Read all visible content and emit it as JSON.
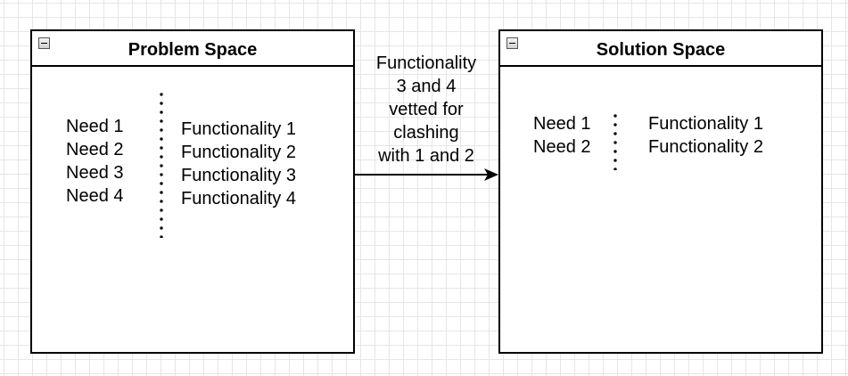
{
  "problem_space": {
    "title": "Problem Space",
    "needs": [
      "Need 1",
      "Need 2",
      "Need 3",
      "Need 4"
    ],
    "functionalities": [
      "Functionality 1",
      "Functionality 2",
      "Functionality 3",
      "Functionality 4"
    ]
  },
  "solution_space": {
    "title": "Solution Space",
    "needs": [
      "Need 1",
      "Need 2"
    ],
    "functionalities": [
      "Functionality 1",
      "Functionality 2"
    ]
  },
  "connector": {
    "label": "Functionality\n3 and 4\nvetted for\nclashing\nwith 1 and 2"
  },
  "colors": {
    "stroke": "#000000",
    "grid": "#e6e6e6",
    "background": "#ffffff"
  },
  "icons": {
    "collapse": "minus-box-icon"
  }
}
